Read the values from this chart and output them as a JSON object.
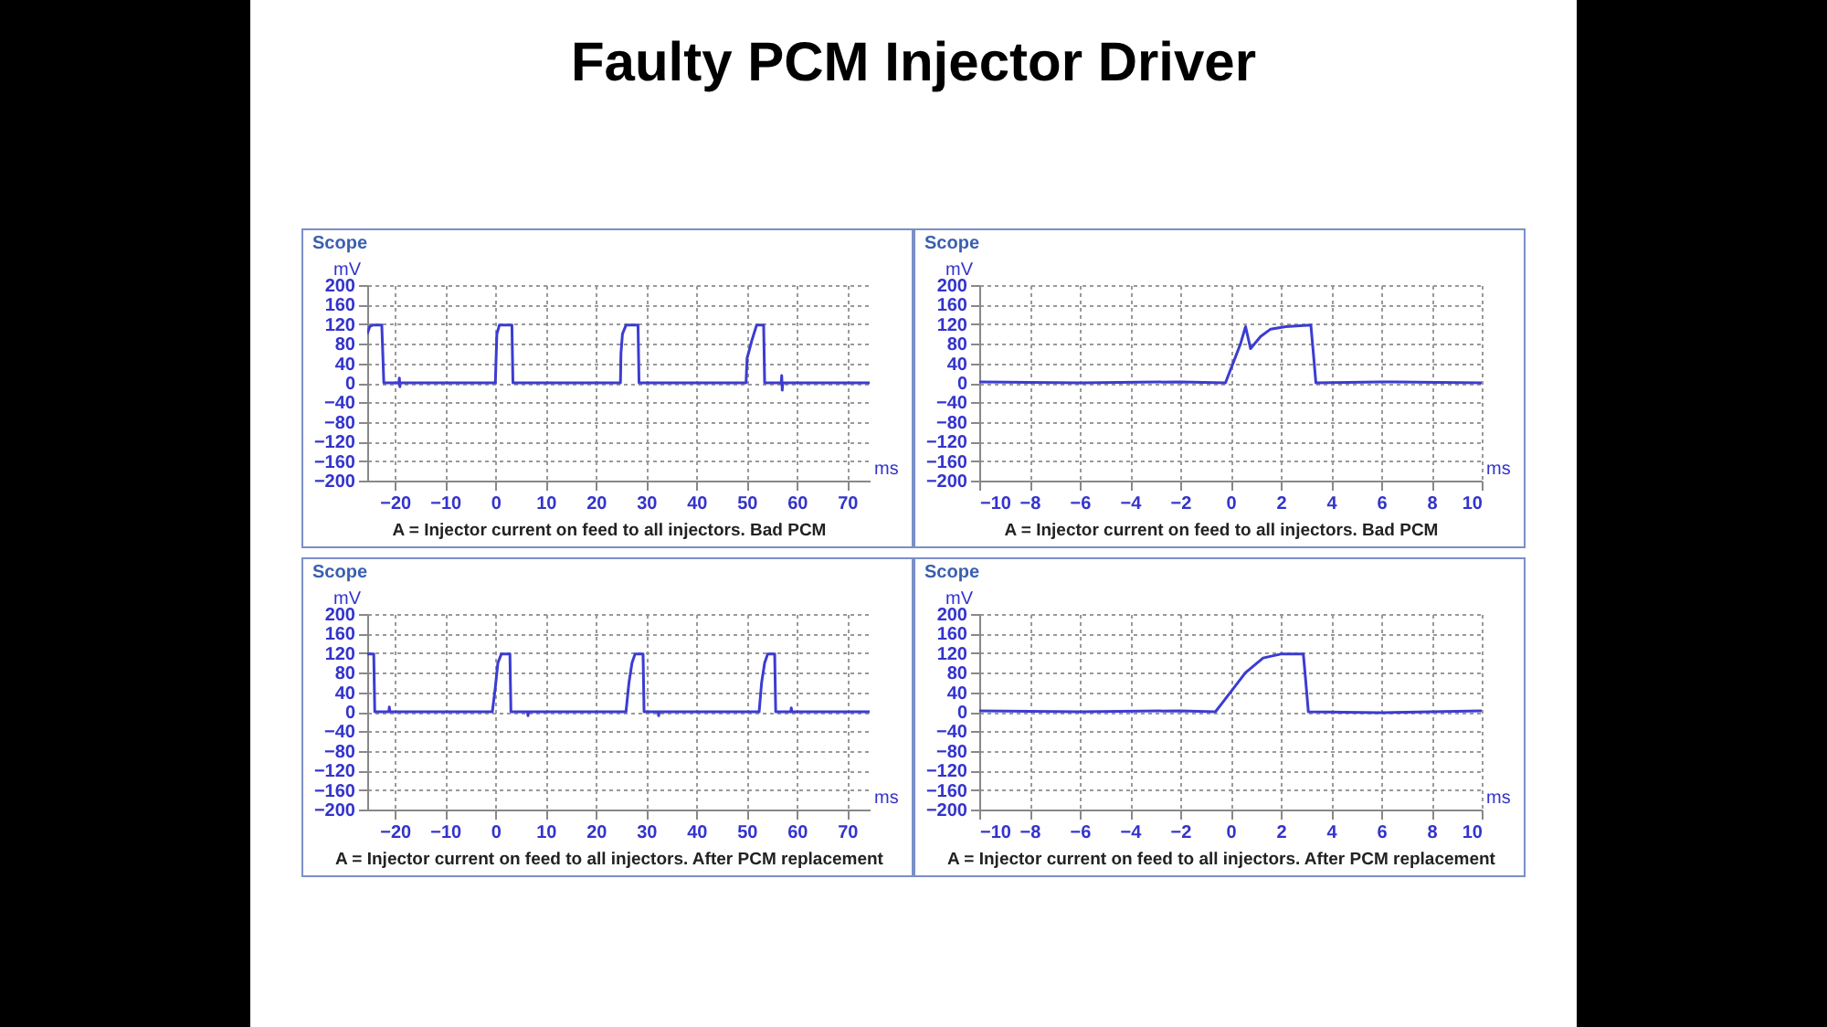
{
  "chart_data": [
    {
      "type": "other",
      "title": "Faulty PCM Injector Driver"
    },
    {
      "type": "line",
      "title": "Scope",
      "ylabel": "mV",
      "xlabel": "ms",
      "annotations": [
        "A = Injector current on feed to all injectors. Bad PCM"
      ],
      "grid": true,
      "marker": "none",
      "line_style": "solid",
      "xlim": [
        -25.5,
        74.5
      ],
      "ylim": [
        -200,
        200
      ],
      "xticks": [
        -20,
        -10,
        0,
        10,
        20,
        30,
        40,
        50,
        60,
        70
      ],
      "yticks": [
        -200,
        -160,
        -120,
        -80,
        -40,
        0,
        40,
        80,
        120,
        160,
        200
      ],
      "series": [
        {
          "color": "#3c3cd2",
          "x": [
            -25.5,
            -25,
            -24.5,
            -22.6,
            -22.4,
            -22.2,
            -19.2,
            -19.1,
            -19,
            -18.9,
            0,
            0.3,
            0.8,
            3.3,
            3.5,
            7,
            24.9,
            25,
            25.3,
            26,
            28.4,
            28.6,
            40,
            49.9,
            50.1,
            51,
            52,
            53.4,
            53.6,
            56.9,
            57,
            57.1,
            57.2,
            74.5
          ],
          "values": [
            100,
            115,
            118,
            118,
            60,
            0,
            0,
            10,
            -8,
            0,
            0,
            100,
            118,
            118,
            0,
            0,
            0,
            60,
            100,
            118,
            118,
            0,
            0,
            0,
            50,
            85,
            118,
            118,
            0,
            0,
            15,
            -15,
            0,
            0
          ]
        }
      ]
    },
    {
      "type": "line",
      "title": "Scope",
      "ylabel": "mV",
      "xlabel": "ms",
      "annotations": [
        "A = Injector current on feed to all injectors. Bad PCM"
      ],
      "grid": true,
      "marker": "none",
      "line_style": "solid",
      "xlim": [
        -10,
        10
      ],
      "ylim": [
        -200,
        200
      ],
      "xticks": [
        -10,
        -8,
        -6,
        -4,
        -2,
        0,
        2,
        4,
        6,
        8,
        10
      ],
      "yticks": [
        -200,
        -160,
        -120,
        -80,
        -40,
        0,
        40,
        80,
        120,
        160,
        200
      ],
      "series": [
        {
          "color": "#3c3cd2",
          "x": [
            -10,
            -6,
            -2,
            -0.2,
            0.1,
            0.4,
            0.6,
            0.8,
            1.2,
            1.6,
            2.2,
            3.2,
            3.3,
            3.4,
            6,
            10
          ],
          "values": [
            2,
            0,
            2,
            0,
            40,
            80,
            115,
            70,
            95,
            110,
            115,
            118,
            60,
            0,
            2,
            0
          ]
        }
      ]
    },
    {
      "type": "line",
      "title": "Scope",
      "ylabel": "mV",
      "xlabel": "ms",
      "annotations": [
        "A = Injector current on feed to all injectors. After PCM replacement"
      ],
      "grid": true,
      "marker": "none",
      "line_style": "solid",
      "xlim": [
        -25.5,
        74.5
      ],
      "ylim": [
        -200,
        200
      ],
      "xticks": [
        -20,
        -10,
        0,
        10,
        20,
        30,
        40,
        50,
        60,
        70
      ],
      "yticks": [
        -200,
        -160,
        -120,
        -80,
        -40,
        0,
        40,
        80,
        120,
        160,
        200
      ],
      "series": [
        {
          "color": "#3c3cd2",
          "x": [
            -25.5,
            -24.2,
            -24,
            -21.2,
            -21.1,
            -21,
            -0.6,
            0,
            0.5,
            1.2,
            2.9,
            3.1,
            6.4,
            6.5,
            6.6,
            26,
            26.6,
            27.2,
            27.8,
            29.4,
            29.6,
            32.4,
            32.5,
            32.6,
            52.5,
            53,
            53.6,
            54.2,
            55.6,
            55.8,
            58.8,
            58.9,
            59,
            74.5
          ],
          "values": [
            118,
            118,
            0,
            0,
            10,
            0,
            0,
            50,
            100,
            118,
            118,
            0,
            0,
            -8,
            0,
            0,
            60,
            100,
            118,
            118,
            0,
            0,
            -8,
            0,
            0,
            60,
            100,
            118,
            118,
            0,
            0,
            8,
            0,
            0
          ]
        }
      ]
    },
    {
      "type": "line",
      "title": "Scope",
      "ylabel": "mV",
      "xlabel": "ms",
      "annotations": [
        "A = Injector current on feed to all injectors. After PCM replacement"
      ],
      "grid": true,
      "marker": "none",
      "line_style": "solid",
      "xlim": [
        -10,
        10
      ],
      "ylim": [
        -200,
        200
      ],
      "xticks": [
        -10,
        -8,
        -6,
        -4,
        -2,
        0,
        2,
        4,
        6,
        8,
        10
      ],
      "yticks": [
        -200,
        -160,
        -120,
        -80,
        -40,
        0,
        40,
        80,
        120,
        160,
        200
      ],
      "series": [
        {
          "color": "#3c3cd2",
          "x": [
            -10,
            -6,
            -2,
            -0.6,
            -0.3,
            0,
            0.6,
            1.3,
            2,
            2.9,
            3,
            3.1,
            6,
            10
          ],
          "values": [
            2,
            0,
            2,
            0,
            20,
            40,
            80,
            110,
            118,
            118,
            60,
            0,
            -2,
            2
          ]
        }
      ]
    }
  ]
}
